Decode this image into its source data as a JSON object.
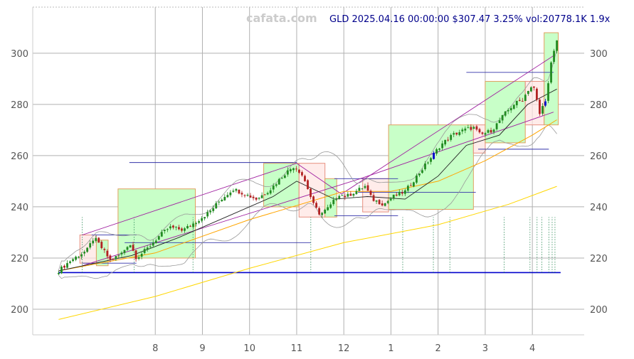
{
  "watermark": "cafata.com",
  "header": "GLD 2025.04.16 00:00:00 $307.47 3.25% vol:20778.1K 1.9x",
  "chart_data": {
    "type": "line",
    "symbol": "GLD",
    "date": "2025.04.16 00:00:00",
    "last_price": 307.47,
    "change_pct": 3.25,
    "volume": "20778.1K",
    "volume_ratio": "1.9x",
    "ylim": [
      190,
      318
    ],
    "y_ticks": [
      200,
      220,
      240,
      260,
      280,
      300
    ],
    "x_ticks": [
      {
        "label": "8",
        "t": 1.0
      },
      {
        "label": "9",
        "t": 2.0
      },
      {
        "label": "10",
        "t": 3.0
      },
      {
        "label": "11",
        "t": 4.0
      },
      {
        "label": "12",
        "t": 5.0
      },
      {
        "label": "1",
        "t": 6.0
      },
      {
        "label": "2",
        "t": 7.0
      },
      {
        "label": "3",
        "t": 8.0
      },
      {
        "label": "4",
        "t": 9.0
      }
    ],
    "xlim": [
      -1.6,
      10.1
    ],
    "grid": true,
    "price_anchors": [
      [
        -1.05,
        215
      ],
      [
        -0.8,
        219
      ],
      [
        -0.45,
        223
      ],
      [
        -0.3,
        228
      ],
      [
        -0.1,
        223
      ],
      [
        0.05,
        219
      ],
      [
        0.3,
        222
      ],
      [
        0.45,
        226
      ],
      [
        0.6,
        220
      ],
      [
        0.85,
        224
      ],
      [
        1.05,
        228
      ],
      [
        1.3,
        232
      ],
      [
        1.6,
        231
      ],
      [
        1.85,
        234
      ],
      [
        2.15,
        238
      ],
      [
        2.4,
        243
      ],
      [
        2.65,
        247
      ],
      [
        2.9,
        245
      ],
      [
        3.15,
        243
      ],
      [
        3.45,
        247
      ],
      [
        3.75,
        253
      ],
      [
        3.95,
        256
      ],
      [
        4.1,
        253
      ],
      [
        4.2,
        249
      ],
      [
        4.35,
        241
      ],
      [
        4.5,
        237
      ],
      [
        4.7,
        240
      ],
      [
        4.9,
        245
      ],
      [
        5.05,
        244
      ],
      [
        5.25,
        246
      ],
      [
        5.45,
        248
      ],
      [
        5.6,
        243
      ],
      [
        5.85,
        241
      ],
      [
        6.05,
        244
      ],
      [
        6.3,
        246
      ],
      [
        6.55,
        252
      ],
      [
        6.8,
        258
      ],
      [
        7.05,
        264
      ],
      [
        7.3,
        268
      ],
      [
        7.55,
        270
      ],
      [
        7.75,
        271
      ],
      [
        7.9,
        268
      ],
      [
        8.15,
        270
      ],
      [
        8.4,
        276
      ],
      [
        8.6,
        280
      ],
      [
        8.8,
        282
      ],
      [
        8.95,
        287
      ],
      [
        9.05,
        286
      ],
      [
        9.15,
        276
      ],
      [
        9.3,
        283
      ],
      [
        9.4,
        296
      ],
      [
        9.52,
        305
      ]
    ],
    "ma_long": [
      [
        -1.05,
        196
      ],
      [
        1.0,
        205
      ],
      [
        3.0,
        216
      ],
      [
        5.0,
        226
      ],
      [
        7.0,
        233
      ],
      [
        8.5,
        241
      ],
      [
        9.52,
        248
      ]
    ],
    "ma_mid": [
      [
        -1.05,
        215
      ],
      [
        1.0,
        222
      ],
      [
        3.0,
        235
      ],
      [
        5.0,
        246
      ],
      [
        6.0,
        246
      ],
      [
        7.0,
        250
      ],
      [
        8.0,
        258
      ],
      [
        9.0,
        268
      ],
      [
        9.52,
        274
      ]
    ],
    "ma_short": [
      [
        -1.05,
        215
      ],
      [
        0.5,
        221
      ],
      [
        1.5,
        228
      ],
      [
        2.5,
        236
      ],
      [
        3.5,
        244
      ],
      [
        4.0,
        250
      ],
      [
        4.8,
        243
      ],
      [
        5.5,
        244
      ],
      [
        6.3,
        243
      ],
      [
        7.0,
        252
      ],
      [
        7.6,
        264
      ],
      [
        8.3,
        268
      ],
      [
        8.9,
        280
      ],
      [
        9.52,
        286
      ]
    ],
    "boxes": [
      {
        "x0": -0.6,
        "x1": -0.25,
        "y0": 218,
        "y1": 229,
        "kind": "down"
      },
      {
        "x0": -0.25,
        "x1": 0.0,
        "y0": 217,
        "y1": 227,
        "kind": "up"
      },
      {
        "x0": 0.21,
        "x1": 1.85,
        "y0": 220,
        "y1": 247,
        "kind": "up"
      },
      {
        "x0": 3.3,
        "x1": 4.05,
        "y0": 240,
        "y1": 257,
        "kind": "up"
      },
      {
        "x0": 4.05,
        "x1": 4.6,
        "y0": 236,
        "y1": 257,
        "kind": "down"
      },
      {
        "x0": 4.6,
        "x1": 4.85,
        "y0": 236,
        "y1": 251,
        "kind": "up"
      },
      {
        "x0": 5.4,
        "x1": 5.95,
        "y0": 238,
        "y1": 251,
        "kind": "down"
      },
      {
        "x0": 5.95,
        "x1": 7.75,
        "y0": 239,
        "y1": 272,
        "kind": "up"
      },
      {
        "x0": 7.75,
        "x1": 8.0,
        "y0": 261,
        "y1": 272,
        "kind": "down"
      },
      {
        "x0": 8.0,
        "x1": 8.85,
        "y0": 265,
        "y1": 289,
        "kind": "up"
      },
      {
        "x0": 8.85,
        "x1": 9.25,
        "y0": 272,
        "y1": 289,
        "kind": "down"
      },
      {
        "x0": 9.25,
        "x1": 9.55,
        "y0": 272,
        "y1": 308,
        "kind": "up"
      }
    ],
    "trend_lines": [
      [
        [
          -0.55,
          229
        ],
        [
          4.0,
          257
        ],
        [
          4.95,
          245
        ],
        [
          9.45,
          299
        ]
      ],
      [
        [
          -0.55,
          217
        ],
        [
          5.35,
          251
        ],
        [
          9.45,
          277
        ]
      ]
    ],
    "hlines": [
      {
        "y": 214.3,
        "x0": -1.05,
        "x1": 9.6,
        "color": "#0000cc"
      },
      {
        "y": 257.3,
        "x0": 0.45,
        "x1": 4.0,
        "color": "#3333aa"
      },
      {
        "y": 226,
        "x0": 0.35,
        "x1": 4.3,
        "color": "#3333aa"
      },
      {
        "y": 229,
        "x0": -0.35,
        "x1": 0.6,
        "color": "#3333aa"
      },
      {
        "y": 218,
        "x0": -0.55,
        "x1": 0.6,
        "color": "#3333aa"
      },
      {
        "y": 251,
        "x0": 4.8,
        "x1": 6.15,
        "color": "#3333aa"
      },
      {
        "y": 236.5,
        "x0": 4.8,
        "x1": 6.15,
        "color": "#3333aa"
      },
      {
        "y": 245.7,
        "x0": 5.3,
        "x1": 7.8,
        "color": "#3333aa"
      },
      {
        "y": 262.5,
        "x0": 7.85,
        "x1": 9.35,
        "color": "#3333aa"
      },
      {
        "y": 292.5,
        "x0": 7.6,
        "x1": 9.45,
        "color": "#3333aa"
      }
    ],
    "vlines_t": [
      -0.55,
      0.55,
      1.8,
      4.3,
      6.25,
      6.9,
      7.25,
      8.4,
      8.95,
      9.1,
      9.2,
      9.35,
      9.42,
      9.48
    ]
  }
}
